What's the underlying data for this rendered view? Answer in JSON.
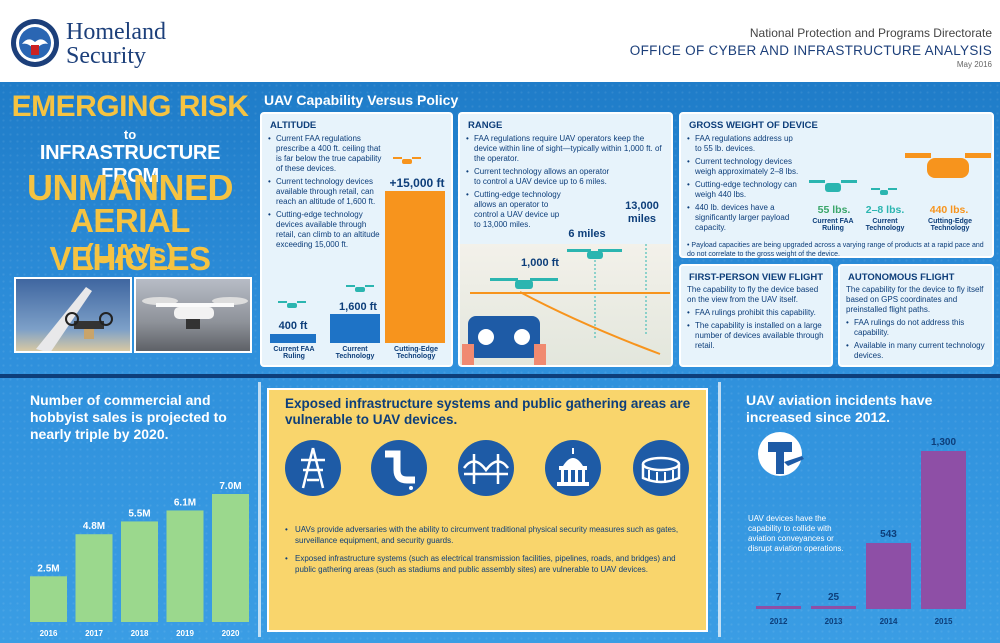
{
  "header": {
    "agency": "Homeland\nSecurity",
    "directorate": "National Protection and Programs Directorate",
    "office": "OFFICE OF CYBER AND INFRASTRUCTURE ANALYSIS",
    "date": "May 2016"
  },
  "badge": {
    "line1": "EMERGING RISK",
    "line2": "to",
    "line3": "INFRASTRUCTURE FROM",
    "line4": "UNMANNED",
    "line5": "AERIAL VEHICLES",
    "line6": "(UAVs)"
  },
  "section_title": "UAV Capability Versus Policy",
  "altitude": {
    "title": "ALTITUDE",
    "bullets": [
      "Current FAA regulations prescribe a 400 ft. ceiling that is far below the true capability of these devices.",
      "Current technology devices available through retail, can reach an altitude of 1,600 ft.",
      "Cutting-edge technology devices available through retail, can climb to an altitude exceeding 15,000 ft."
    ],
    "bars": [
      {
        "value": "400 ft",
        "label": "Current FAA Ruling"
      },
      {
        "value": "1,600 ft",
        "label": "Current Technology"
      },
      {
        "value": "+15,000 ft",
        "label": "Cutting-Edge Technology"
      }
    ]
  },
  "range": {
    "title": "RANGE",
    "bullets": [
      "FAA regulations require UAV operators keep the device within line of sight—typically within 1,000 ft. of the operator.",
      "Current technology allows an operator to control a UAV device up to 6 miles.",
      "Cutting-edge technology allows an operator to control a UAV device up to 13,000 miles."
    ],
    "marks": [
      "1,000 ft",
      "6 miles",
      "13,000 miles"
    ]
  },
  "weight": {
    "title": "GROSS WEIGHT OF DEVICE",
    "bullets": [
      "FAA regulations address up to 55 lb. devices.",
      "Current technology devices weigh approximately 2–8 lbs.",
      "Cutting-edge technology can weigh 440 lbs.",
      "440 lb. devices have a significantly larger payload capacity."
    ],
    "items": [
      {
        "value": "55 lbs.",
        "label": "Current FAA Ruling"
      },
      {
        "value": "2–8 lbs.",
        "label": "Current Technology"
      },
      {
        "value": "440 lbs.",
        "label": "Cutting-Edge Technology"
      }
    ],
    "note": "Payload capacities are being upgraded across a varying range of products at a rapid pace and do not correlate to the gross weight of the device."
  },
  "fpv": {
    "title": "FIRST-PERSON VIEW FLIGHT",
    "intro": "The capability to fly the device based on the view from the UAV itself.",
    "bullets": [
      "FAA rulings prohibit this capability.",
      "The capability is installed on a large number of devices available through retail."
    ]
  },
  "auto": {
    "title": "AUTONOMOUS FLIGHT",
    "intro": "The capability for the device to fly itself based on GPS coordinates and preinstalled flight paths.",
    "bullets": [
      "FAA rulings do not address this capability.",
      "Available in many current technology devices."
    ]
  },
  "sales": {
    "title": "Number of commercial and hobbyist sales is projected to nearly triple by 2020."
  },
  "exposed": {
    "title": "Exposed infrastructure systems and public gathering areas are vulnerable to UAV devices.",
    "icons": [
      "power-tower-icon",
      "pipeline-icon",
      "bridge-icon",
      "capitol-icon",
      "stadium-icon"
    ],
    "bullets": [
      "UAVs provide adversaries with the ability to circumvent traditional physical security measures such as gates, surveillance equipment, and security guards.",
      "Exposed infrastructure systems (such as electrical transmission facilities, pipelines, roads, and bridges) and public gathering areas (such as stadiums and public assembly sites) are vulnerable to UAV devices."
    ]
  },
  "incidents": {
    "title": "UAV aviation incidents have increased since 2012.",
    "note": "UAV devices have the capability to collide with aviation conveyances or disrupt aviation operations."
  },
  "colors": {
    "navy": "#0d3e7a",
    "blue": "#2e8fdb",
    "gold": "#f5c342",
    "orange": "#f7941d",
    "green": "#9bd88d",
    "purple": "#8e4fa6",
    "teal": "#2bb5b0"
  },
  "chart_data": [
    {
      "type": "bar",
      "title": "Number of commercial and hobbyist sales is projected to nearly triple by 2020.",
      "categories": [
        "2016",
        "2017",
        "2018",
        "2019",
        "2020"
      ],
      "values": [
        2.5,
        4.8,
        5.5,
        6.1,
        7.0
      ],
      "data_labels": [
        "2.5M",
        "4.8M",
        "5.5M",
        "6.1M",
        "7.0M"
      ],
      "ylim": [
        0,
        7.6
      ]
    },
    {
      "type": "bar",
      "title": "UAV aviation incidents have increased since 2012.",
      "categories": [
        "2012",
        "2013",
        "2014",
        "2015"
      ],
      "values": [
        7,
        25,
        543,
        1300
      ],
      "data_labels": [
        "7",
        "25",
        "543",
        "1,300"
      ],
      "ylim": [
        0,
        1300
      ]
    }
  ]
}
